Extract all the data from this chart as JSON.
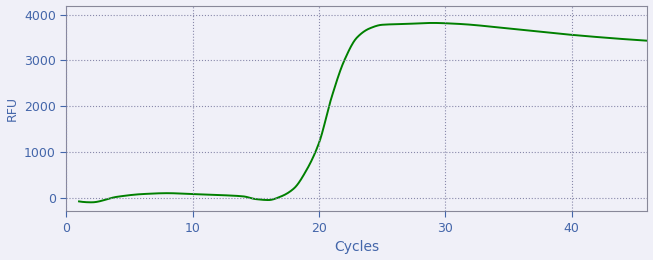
{
  "line_color": "#008000",
  "background_color": "#f0f0f8",
  "plot_bg_color": "#f0f0f8",
  "xlabel": "Cycles",
  "ylabel": "RFU",
  "xlim": [
    0,
    46
  ],
  "ylim": [
    -300,
    4200
  ],
  "xticks": [
    0,
    10,
    20,
    30,
    40
  ],
  "yticks": [
    0,
    1000,
    2000,
    3000,
    4000
  ],
  "grid_color": "#8888aa",
  "line_width": 1.4,
  "xlabel_fontsize": 10,
  "ylabel_fontsize": 9,
  "tick_fontsize": 9,
  "tick_color": "#4466aa",
  "spine_color": "#888899"
}
